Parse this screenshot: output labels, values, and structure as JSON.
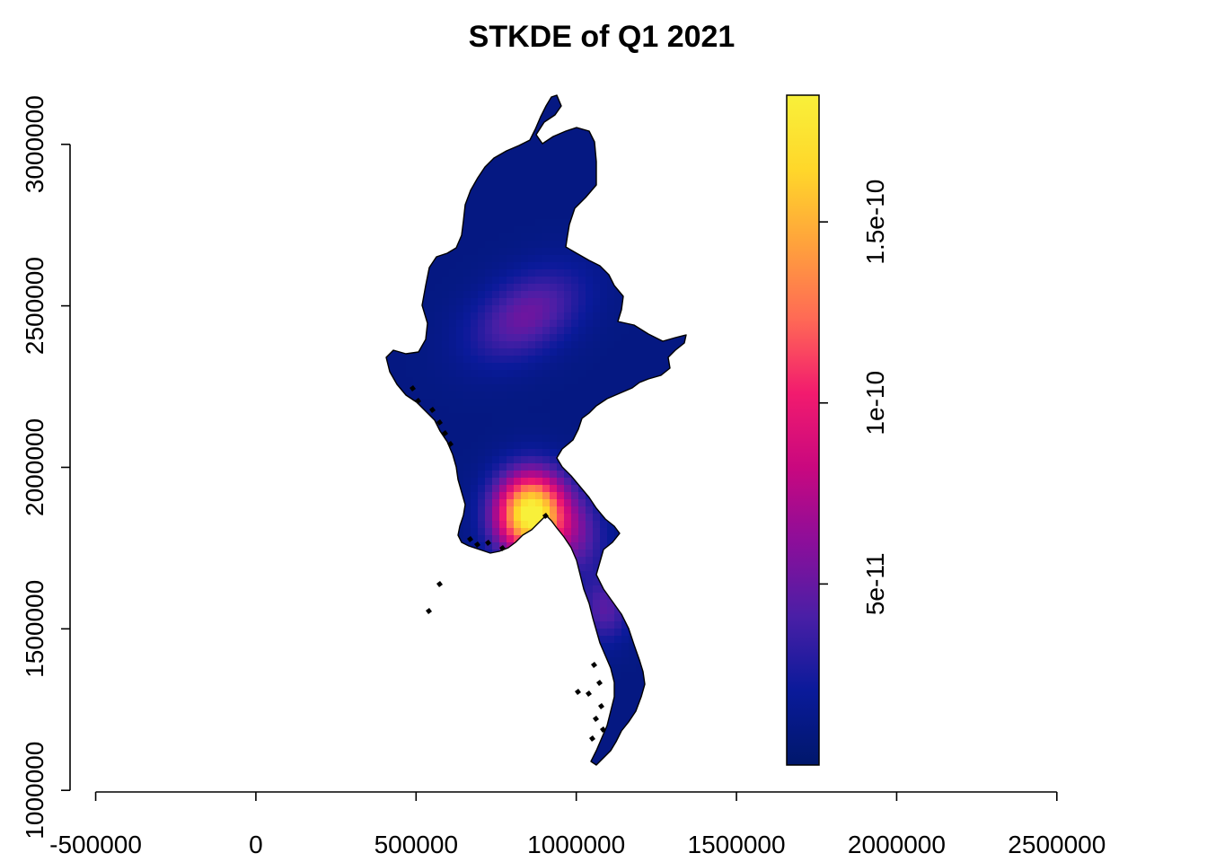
{
  "chart_data": {
    "type": "heatmap",
    "title": "STKDE of Q1 2021",
    "xlabel": "",
    "ylabel": "",
    "x_ticks": [
      -500000,
      0,
      500000,
      1000000,
      1500000,
      2000000,
      2500000
    ],
    "x_tick_labels": [
      "-500000",
      "0",
      "500000",
      "1000000",
      "1500000",
      "2000000",
      "2500000"
    ],
    "y_ticks": [
      1000000,
      1500000,
      2000000,
      2500000,
      3000000
    ],
    "y_tick_labels": [
      "1000000",
      "1500000",
      "2000000",
      "2500000",
      "3000000"
    ],
    "xlim": [
      -580000,
      2750000
    ],
    "ylim": [
      995000,
      3230000
    ],
    "colorbar": {
      "min": 0,
      "max": 1.85e-10,
      "ticks": [
        5e-11,
        1e-10,
        1.5e-10
      ],
      "tick_labels": [
        "5e-11",
        "1e-10",
        "1.5e-10"
      ],
      "colors": [
        "#00176B",
        "#0A1A9A",
        "#4A1FA6",
        "#8C0E9A",
        "#C9087F",
        "#F21B6E",
        "#FF6A55",
        "#FFA23C",
        "#FFD72A",
        "#F8F03A"
      ]
    },
    "hotspots": [
      {
        "x": 860000,
        "y": 1855000,
        "density": 1.85e-10,
        "sx": 75000,
        "sy": 85000,
        "rot": 0
      },
      {
        "x": 845000,
        "y": 2470000,
        "density": 4.2e-11,
        "sx": 130000,
        "sy": 80000,
        "rot": -0.55
      },
      {
        "x": 1010000,
        "y": 1780000,
        "density": 3e-11,
        "sx": 60000,
        "sy": 90000,
        "rot": 0
      },
      {
        "x": 1090000,
        "y": 1560000,
        "density": 3.5e-11,
        "sx": 55000,
        "sy": 70000,
        "rot": 0
      }
    ],
    "background_density": 1e-11
  }
}
